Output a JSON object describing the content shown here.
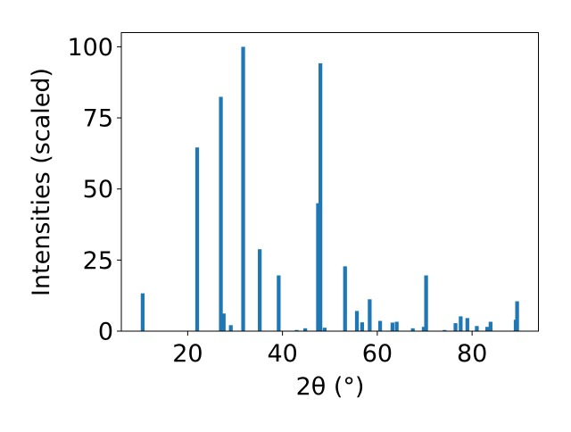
{
  "chart_data": {
    "type": "bar",
    "xlabel": "2θ (°)",
    "ylabel": "Intensities (scaled)",
    "xlim": [
      6.0,
      94.0
    ],
    "ylim": [
      0,
      105
    ],
    "x_ticks": [
      20,
      40,
      60,
      80
    ],
    "y_ticks": [
      0,
      25,
      50,
      75,
      100
    ],
    "x_tick_labels": [
      "20",
      "40",
      "60",
      "80"
    ],
    "y_tick_labels": [
      "0",
      "25",
      "50",
      "75",
      "100"
    ],
    "grid": false,
    "legend": "none",
    "bar_color": "#1f77b4",
    "bar_width": 0.8,
    "series": [
      {
        "x": [
          10.5,
          22.0,
          27.0,
          27.6,
          29.1,
          31.7,
          35.2,
          39.2,
          43.0,
          44.8,
          47.5,
          48.0,
          48.9,
          53.2,
          55.7,
          56.8,
          58.4,
          60.6,
          63.2,
          64.1,
          67.5,
          69.8,
          70.3,
          74.2,
          76.5,
          77.6,
          79.0,
          81.0,
          83.2,
          83.9,
          89.2,
          89.5
        ],
        "values": [
          13.3,
          64.6,
          82.4,
          6.2,
          2.1,
          100.0,
          28.8,
          19.6,
          0.4,
          1.0,
          45.0,
          94.2,
          1.2,
          22.8,
          7.1,
          3.1,
          11.2,
          3.6,
          3.0,
          3.3,
          1.0,
          1.5,
          19.6,
          0.4,
          2.8,
          5.2,
          4.6,
          1.8,
          1.5,
          3.3,
          4.0,
          10.5
        ]
      }
    ]
  }
}
